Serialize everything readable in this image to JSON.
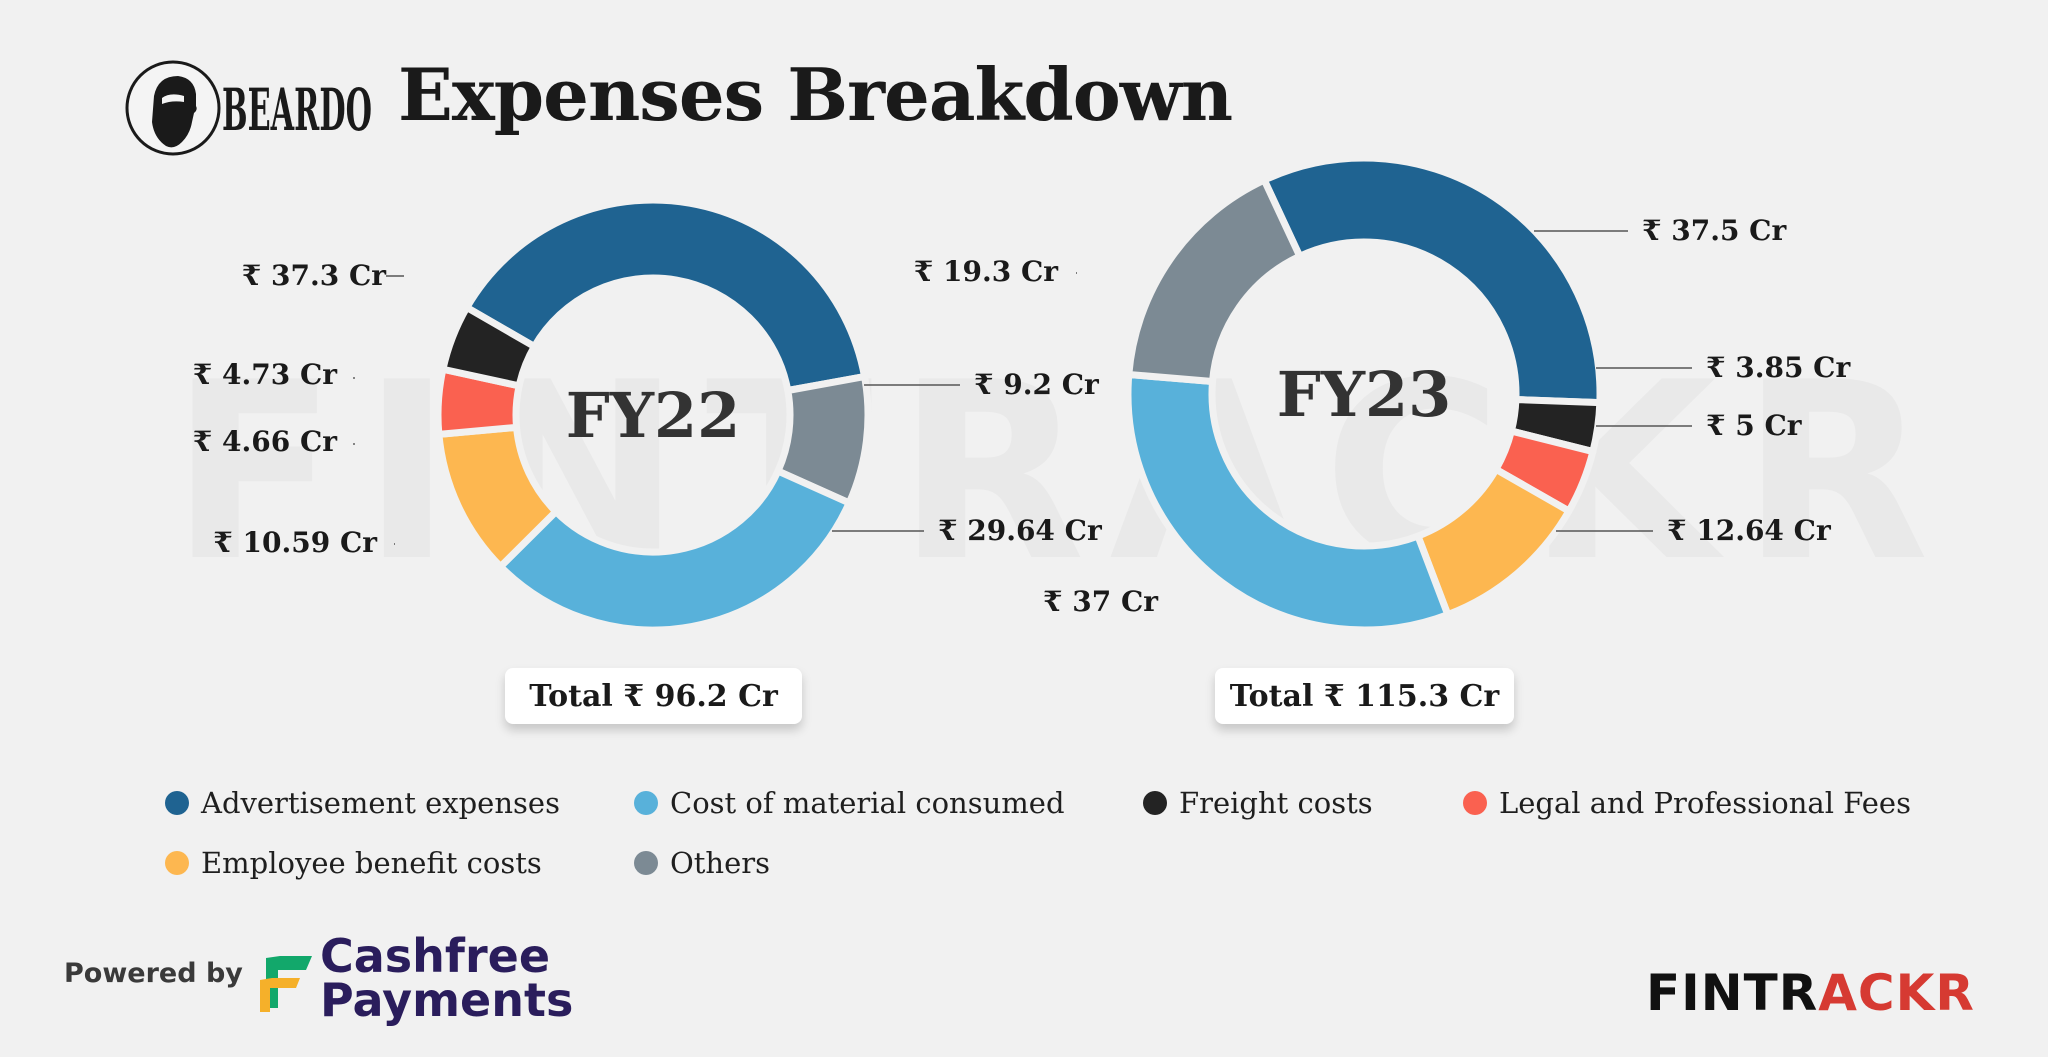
{
  "header": {
    "logo_text": "BEARDO",
    "title": "Expenses Breakdown"
  },
  "watermark": "FINTRACKR",
  "legend": [
    {
      "key": "advertisement",
      "label": "Advertisement expenses",
      "color": "#1f6391"
    },
    {
      "key": "material",
      "label": "Cost of material consumed",
      "color": "#58b1da"
    },
    {
      "key": "freight",
      "label": "Freight costs",
      "color": "#232323"
    },
    {
      "key": "legal",
      "label": "Legal and Professional Fees",
      "color": "#fa6150"
    },
    {
      "key": "employee",
      "label": "Employee benefit costs",
      "color": "#fdb750"
    },
    {
      "key": "others",
      "label": "Others",
      "color": "#7c8a94"
    }
  ],
  "chart_data": [
    {
      "type": "pie",
      "center_label": "FY22",
      "total_label": "Total ₹ 96.2 Cr",
      "total": 96.2,
      "slices": [
        {
          "category": "Advertisement expenses",
          "value": 37.3,
          "label": "₹ 37.3 Cr",
          "color": "#1f6391"
        },
        {
          "category": "Others",
          "value": 9.2,
          "label": "₹ 9.2 Cr",
          "color": "#7c8a94"
        },
        {
          "category": "Cost of material consumed",
          "value": 29.64,
          "label": "₹ 29.64 Cr",
          "color": "#58b1da"
        },
        {
          "category": "Employee benefit costs",
          "value": 10.59,
          "label": "₹ 10.59 Cr",
          "color": "#fdb750"
        },
        {
          "category": "Legal and Professional Fees",
          "value": 4.66,
          "label": "₹ 4.66 Cr",
          "color": "#fa6150"
        },
        {
          "category": "Freight costs",
          "value": 4.73,
          "label": "₹ 4.73 Cr",
          "color": "#232323"
        }
      ]
    },
    {
      "type": "pie",
      "center_label": "FY23",
      "total_label": "Total ₹ 115.3 Cr",
      "total": 115.3,
      "slices": [
        {
          "category": "Advertisement expenses",
          "value": 37.5,
          "label": "₹ 37.5 Cr",
          "color": "#1f6391"
        },
        {
          "category": "Freight costs",
          "value": 3.85,
          "label": "₹ 3.85 Cr",
          "color": "#232323"
        },
        {
          "category": "Legal and Professional Fees",
          "value": 5,
          "label": "₹ 5 Cr",
          "color": "#fa6150"
        },
        {
          "category": "Employee benefit costs",
          "value": 12.64,
          "label": "₹ 12.64 Cr",
          "color": "#fdb750"
        },
        {
          "category": "Cost of material consumed",
          "value": 37,
          "label": "₹ 37 Cr",
          "color": "#58b1da"
        },
        {
          "category": "Others",
          "value": 19.3,
          "label": "₹ 19.3 Cr",
          "color": "#7c8a94"
        }
      ]
    }
  ],
  "footer": {
    "powered_by": "Powered by",
    "sponsor_line1": "Cashfree",
    "sponsor_line2": "Payments",
    "brand_part1": "FINTR",
    "brand_part2": "ACKR",
    "brand_color1": "#111111",
    "brand_color2": "#d63a32"
  }
}
